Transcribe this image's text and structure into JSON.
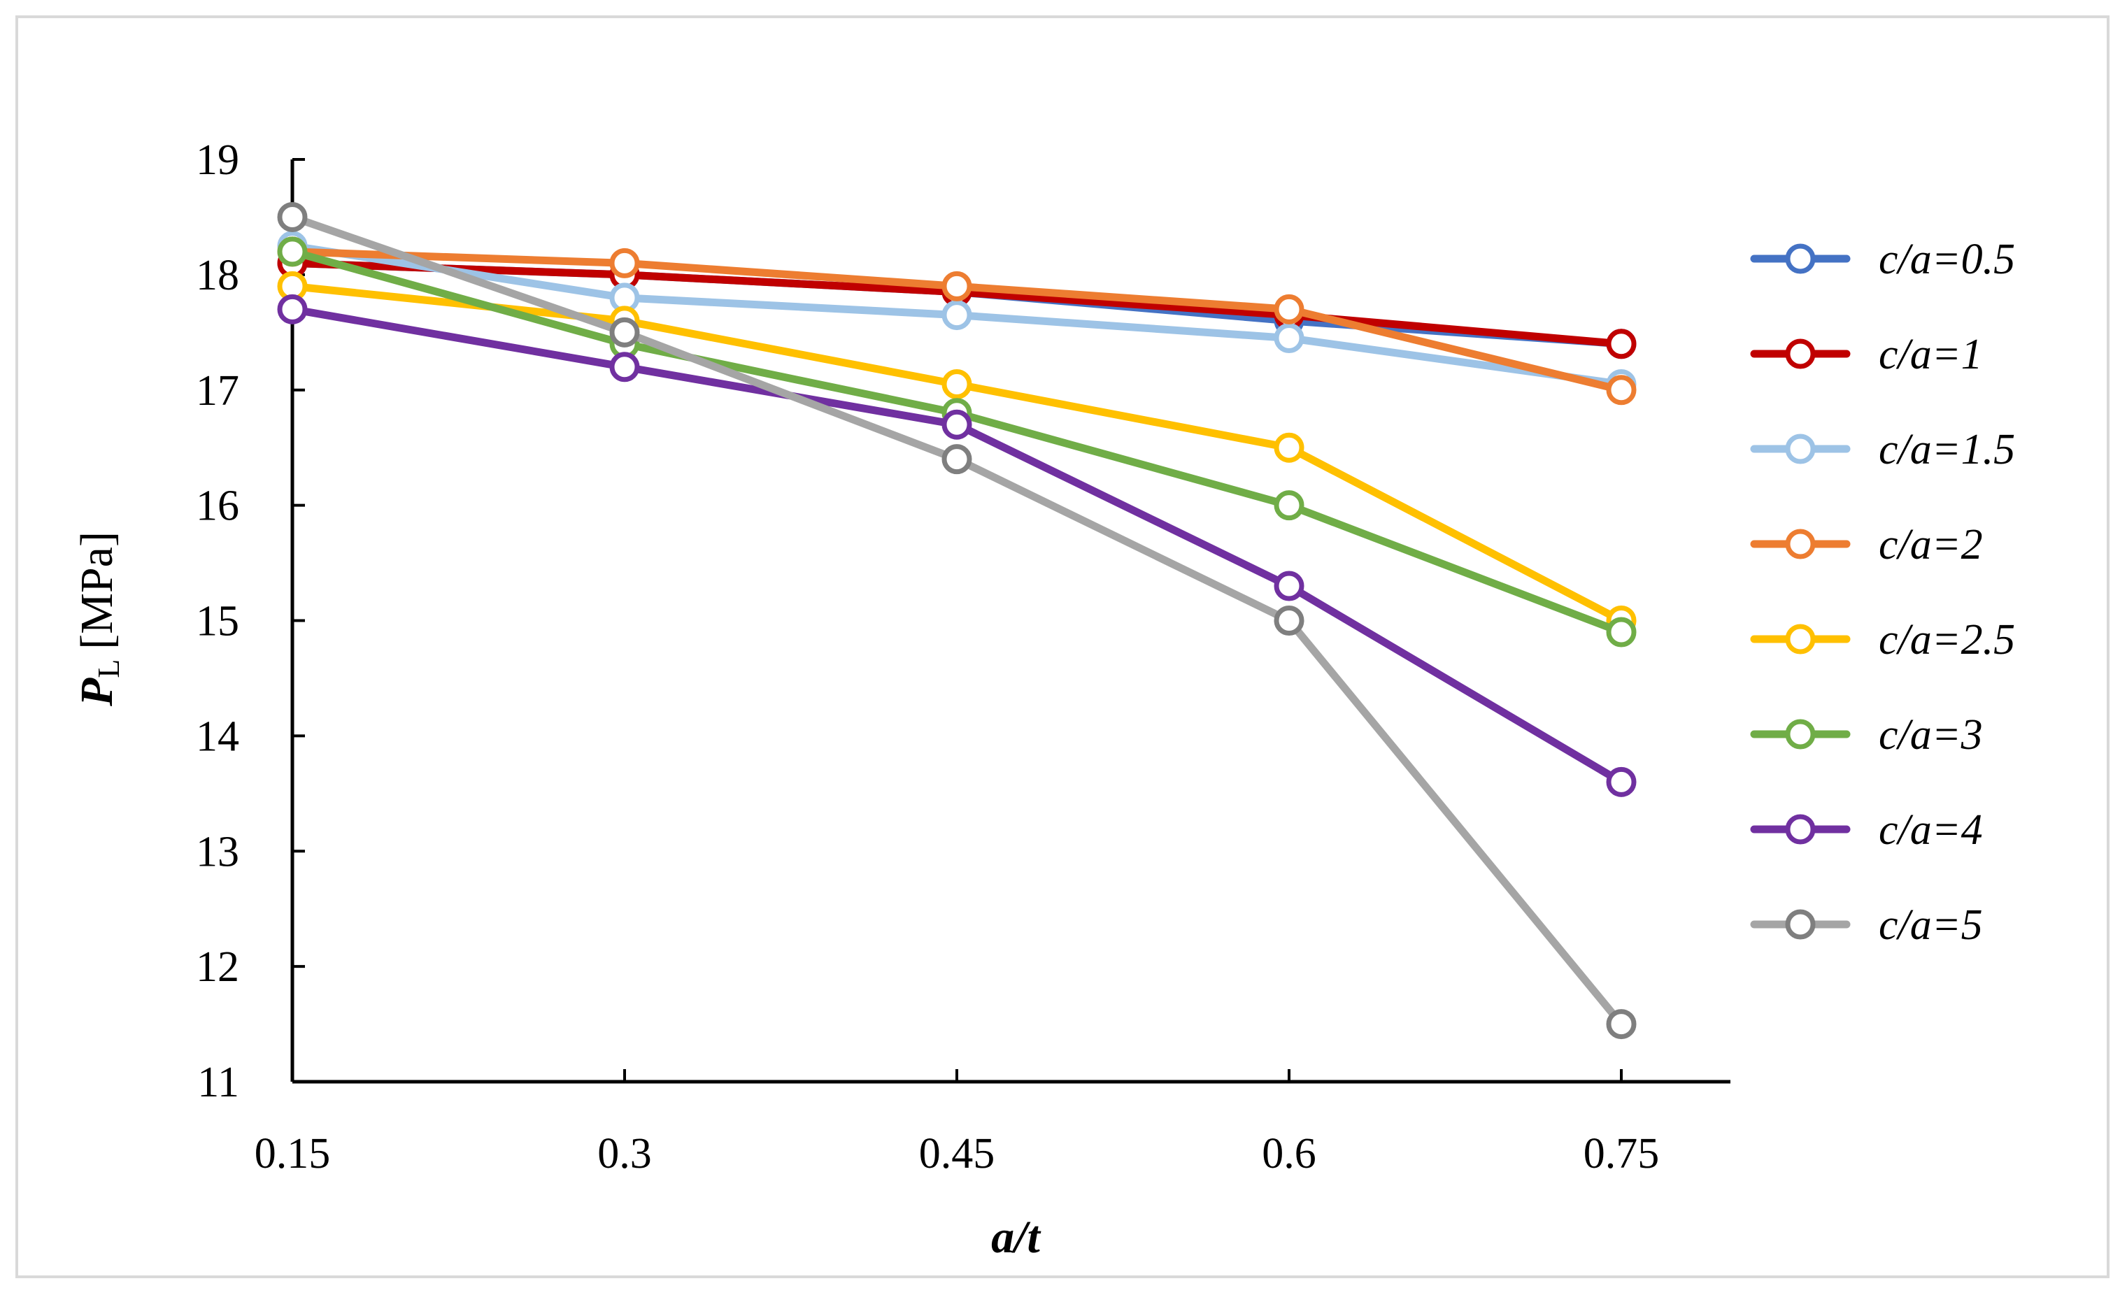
{
  "chart_data": {
    "type": "line",
    "title": "",
    "xlabel": "a/t",
    "ylabel_main": "P",
    "ylabel_sub": "L",
    "ylabel_unit": "[MPa]",
    "x": [
      0.15,
      0.3,
      0.45,
      0.6,
      0.75
    ],
    "x_tick_labels": [
      "0.15",
      "0.3",
      "0.45",
      "0.6",
      "0.75"
    ],
    "y_tick_labels": [
      "11",
      "12",
      "13",
      "14",
      "15",
      "16",
      "17",
      "18",
      "19"
    ],
    "ylim": [
      11,
      19
    ],
    "grid": false,
    "legend_position": "right",
    "series": [
      {
        "name": "c/a=0.5",
        "color": "#4472c4",
        "values": [
          18.1,
          18.0,
          17.85,
          17.6,
          17.4
        ]
      },
      {
        "name": "c/a=1",
        "color": "#c00000",
        "values": [
          18.1,
          18.0,
          17.85,
          17.65,
          17.4
        ]
      },
      {
        "name": "c/a=1.5",
        "color": "#9dc3e6",
        "values": [
          18.25,
          17.8,
          17.65,
          17.45,
          17.05
        ]
      },
      {
        "name": "c/a=2",
        "color": "#ed7d31",
        "values": [
          18.2,
          18.1,
          17.9,
          17.7,
          17.0
        ]
      },
      {
        "name": "c/a=2.5",
        "color": "#ffc000",
        "values": [
          17.9,
          17.6,
          17.05,
          16.5,
          15.0
        ]
      },
      {
        "name": "c/a=3",
        "color": "#70ad47",
        "values": [
          18.2,
          17.4,
          16.8,
          16.0,
          14.9
        ]
      },
      {
        "name": "c/a=4",
        "color": "#7030a0",
        "values": [
          17.7,
          17.2,
          16.7,
          15.3,
          13.6
        ]
      },
      {
        "name": "c/a=5",
        "color": "#a5a5a5",
        "marker_color": "#7f7f7f",
        "values": [
          18.5,
          17.5,
          16.4,
          15.0,
          11.5
        ]
      }
    ]
  }
}
